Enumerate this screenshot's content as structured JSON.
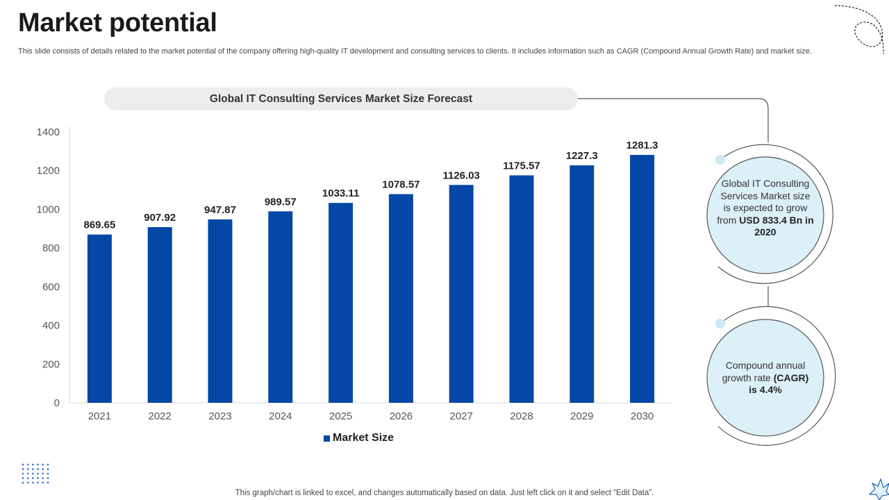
{
  "page": {
    "title": "Market potential",
    "description": "This slide consists of details related to the market potential of the company offering high-quality IT development and consulting services to clients. It includes information such as CAGR (Compound Annual Growth Rate) and market size.",
    "footer": "This graph/chart is linked to excel,  and changes automatically based on data. Just left click on it and select “Edit Data”."
  },
  "colors": {
    "bar": "#0447a6",
    "accent_light": "#dcf0f8",
    "accent_dot": "#cfe8f5",
    "outline": "#555555"
  },
  "callouts": {
    "market": {
      "text_before": "Global IT Consulting Services Market size is expected to grow from ",
      "text_bold": "USD 833.4 Bn in 2020"
    },
    "cagr": {
      "text_before": "Compound annual growth rate ",
      "text_bold": "(CAGR) is 4.4%"
    }
  },
  "chart_data": {
    "type": "bar",
    "title": "Global IT Consulting Services Market Size Forecast",
    "categories": [
      "2021",
      "2022",
      "2023",
      "2024",
      "2025",
      "2026",
      "2027",
      "2028",
      "2029",
      "2030"
    ],
    "series": [
      {
        "name": "Market Size",
        "values": [
          869.65,
          907.92,
          947.87,
          989.57,
          1033.11,
          1078.57,
          1126.03,
          1175.57,
          1227.3,
          1281.3
        ]
      }
    ],
    "value_labels": [
      "869.65",
      "907.92",
      "947.87",
      "989.57",
      "1033.11",
      "1078.57",
      "1126.03",
      "1175.57",
      "1227.3",
      "1281.3"
    ],
    "ylim": [
      0,
      1400
    ],
    "yticks": [
      "0",
      "200",
      "400",
      "600",
      "800",
      "1000",
      "1200",
      "1400"
    ],
    "xlabel": "",
    "ylabel": "",
    "grid": false,
    "legend": "bottom"
  }
}
